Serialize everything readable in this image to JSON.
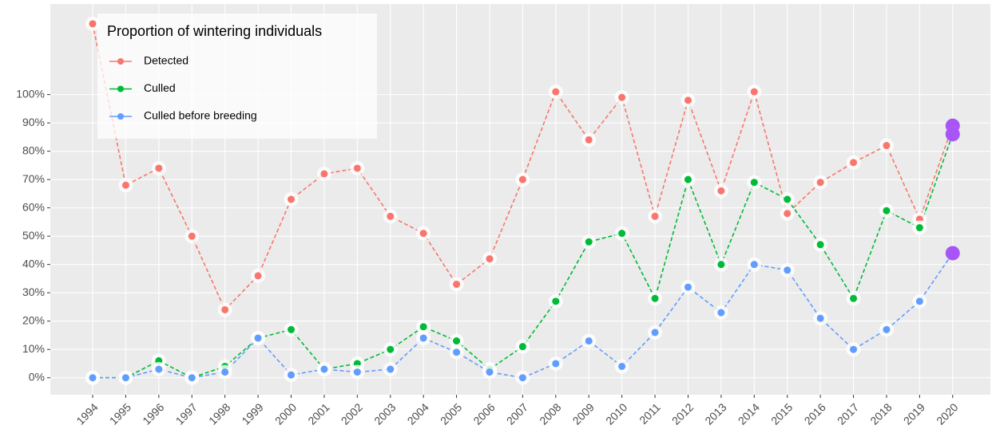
{
  "chart_data": {
    "type": "line",
    "legend_title": "Proportion of wintering individuals",
    "x": [
      1994,
      1995,
      1996,
      1997,
      1998,
      1999,
      2000,
      2001,
      2002,
      2003,
      2004,
      2005,
      2006,
      2007,
      2008,
      2009,
      2010,
      2011,
      2012,
      2013,
      2014,
      2015,
      2016,
      2017,
      2018,
      2019,
      2020
    ],
    "series": [
      {
        "name": "Detected",
        "color": "#f8766d",
        "values": [
          125,
          68,
          74,
          50,
          24,
          36,
          63,
          72,
          74,
          57,
          51,
          33,
          42,
          70,
          101,
          84,
          99,
          57,
          98,
          66,
          101,
          58,
          69,
          76,
          82,
          56,
          89
        ]
      },
      {
        "name": "Culled",
        "color": "#00ba38",
        "values": [
          0,
          0,
          6,
          0,
          4,
          14,
          17,
          3,
          5,
          10,
          18,
          13,
          3,
          11,
          27,
          48,
          51,
          28,
          70,
          40,
          69,
          63,
          47,
          28,
          59,
          53,
          86
        ]
      },
      {
        "name": "Culled before breeding",
        "color": "#619cff",
        "values": [
          0,
          0,
          3,
          0,
          2,
          14,
          1,
          3,
          2,
          3,
          14,
          9,
          2,
          0,
          5,
          13,
          4,
          16,
          32,
          23,
          40,
          38,
          21,
          10,
          17,
          27,
          44
        ]
      }
    ],
    "highlight_color": "#a855f7",
    "xlim": [
      1992.72,
      2021.14
    ],
    "xticks": [
      1994,
      1995,
      1996,
      1997,
      1998,
      1999,
      2000,
      2001,
      2002,
      2003,
      2004,
      2005,
      2006,
      2007,
      2008,
      2009,
      2010,
      2011,
      2012,
      2013,
      2014,
      2015,
      2016,
      2017,
      2018,
      2019,
      2020
    ],
    "ylim": [
      -6,
      132
    ],
    "yticks": [
      {
        "value": 0,
        "label": "0%"
      },
      {
        "value": 10,
        "label": "10%"
      },
      {
        "value": 20,
        "label": "20%"
      },
      {
        "value": 30,
        "label": "30%"
      },
      {
        "value": 40,
        "label": "40%"
      },
      {
        "value": 50,
        "label": "50%"
      },
      {
        "value": 60,
        "label": "60%"
      },
      {
        "value": 70,
        "label": "70%"
      },
      {
        "value": 80,
        "label": "80%"
      },
      {
        "value": 90,
        "label": "90%"
      },
      {
        "value": 100,
        "label": "100%"
      }
    ],
    "grid": true
  }
}
